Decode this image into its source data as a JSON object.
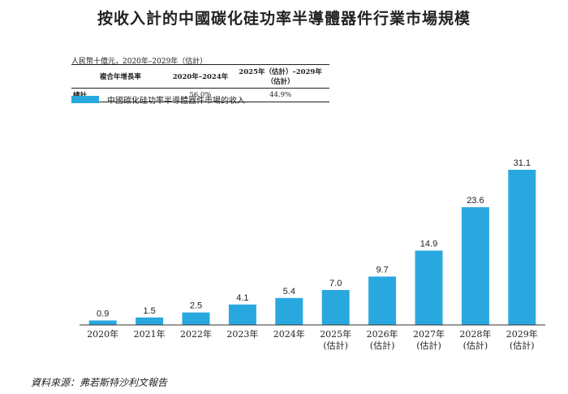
{
  "title": "按收入計的中國碳化硅功率半導體器件行業市場規模",
  "unit_note": "人民幣十億元，2020年–2029年（估計）",
  "cagr_table": {
    "headers": [
      "複合年增長率",
      "2020年–2024年",
      "2025年（估計）–2029年（估計）"
    ],
    "row": {
      "label": "總計",
      "values": [
        "56.0%",
        "44.9%"
      ]
    }
  },
  "legend": {
    "label": "中國碳化硅功率半導體器件市場的收入",
    "color": "#29a8e0"
  },
  "chart_data": {
    "type": "bar",
    "title": "按收入計的中國碳化硅功率半導體器件行業市場規模",
    "ylabel": "人民幣十億元",
    "categories": [
      "2020年",
      "2021年",
      "2022年",
      "2023年",
      "2024年",
      "2025年",
      "2026年",
      "2027年",
      "2028年",
      "2029年"
    ],
    "category_notes": [
      "",
      "",
      "",
      "",
      "",
      "(估計)",
      "(估計)",
      "(估計)",
      "(估計)",
      "(估計)"
    ],
    "series": [
      {
        "name": "中國碳化硅功率半導體器件市場的收入",
        "values": [
          0.9,
          1.5,
          2.5,
          4.1,
          5.4,
          7.0,
          9.7,
          14.9,
          23.6,
          31.1
        ],
        "labels": [
          "0.9",
          "1.5",
          "2.5",
          "4.1",
          "5.4",
          "7.0",
          "9.7",
          "14.9",
          "23.6",
          "31.1"
        ]
      }
    ],
    "ylim": [
      0,
      31.1
    ],
    "grid": false
  },
  "source": "資料來源：弗若斯特沙利文報告"
}
